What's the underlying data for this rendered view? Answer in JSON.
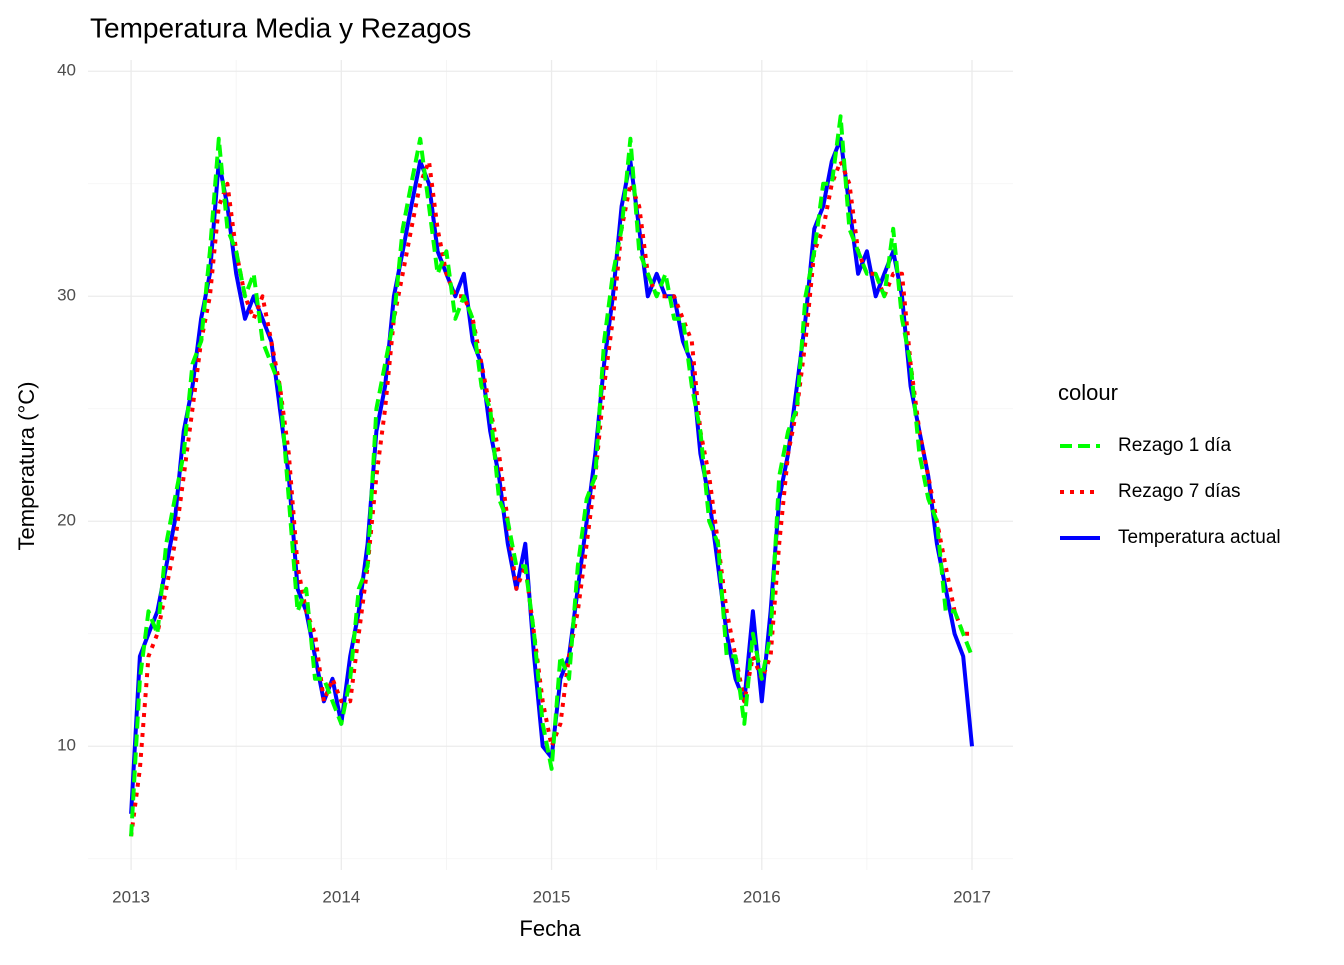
{
  "chart_data": {
    "type": "line",
    "title": "Temperatura Media y Rezagos",
    "x_label": "Fecha",
    "y_label": "Temperatura (°C)",
    "xlim": [
      2012.795,
      2017.195
    ],
    "xticks": [
      2013,
      2014,
      2015,
      2016,
      2017
    ],
    "ylim": [
      4.5,
      40.5
    ],
    "yticks": [
      10,
      20,
      30,
      40
    ],
    "grid": true,
    "minor_grid": true,
    "legend_title": "colour",
    "legend_position": "right",
    "x": [
      2013,
      2013.042,
      2013.083,
      2013.125,
      2013.167,
      2013.208,
      2013.25,
      2013.292,
      2013.333,
      2013.375,
      2013.417,
      2013.458,
      2013.5,
      2013.542,
      2013.583,
      2013.625,
      2013.667,
      2013.708,
      2013.75,
      2013.792,
      2013.833,
      2013.875,
      2013.917,
      2013.958,
      2014,
      2014.042,
      2014.083,
      2014.125,
      2014.167,
      2014.208,
      2014.25,
      2014.292,
      2014.333,
      2014.375,
      2014.417,
      2014.458,
      2014.5,
      2014.542,
      2014.583,
      2014.625,
      2014.667,
      2014.708,
      2014.75,
      2014.792,
      2014.833,
      2014.875,
      2014.917,
      2014.958,
      2015,
      2015.042,
      2015.083,
      2015.125,
      2015.167,
      2015.208,
      2015.25,
      2015.292,
      2015.333,
      2015.375,
      2015.417,
      2015.458,
      2015.5,
      2015.542,
      2015.583,
      2015.625,
      2015.667,
      2015.708,
      2015.75,
      2015.792,
      2015.833,
      2015.875,
      2015.917,
      2015.958,
      2016,
      2016.042,
      2016.083,
      2016.125,
      2016.167,
      2016.208,
      2016.25,
      2016.292,
      2016.333,
      2016.375,
      2016.417,
      2016.458,
      2016.5,
      2016.542,
      2016.583,
      2016.625,
      2016.667,
      2016.708,
      2016.75,
      2016.792,
      2016.833,
      2016.875,
      2016.917,
      2016.958,
      2017
    ],
    "series": [
      {
        "name": "Rezago 1 día",
        "color": "#00ff00",
        "dash": "dashed",
        "values": [
          6,
          13,
          16,
          15,
          19,
          21,
          23,
          27,
          28,
          32,
          37,
          33,
          32,
          30,
          31,
          28,
          27,
          26,
          21,
          16,
          17,
          13,
          13,
          12,
          11,
          13,
          17,
          18,
          25,
          27,
          29,
          33,
          35,
          37,
          34,
          31,
          32,
          29,
          30,
          29,
          26,
          25,
          21,
          20,
          18,
          18,
          15,
          11,
          9,
          14,
          13,
          18,
          21,
          22,
          28,
          31,
          33,
          37,
          32,
          31,
          30,
          31,
          29,
          29,
          26,
          24,
          20,
          19,
          14,
          14,
          11,
          15,
          13,
          15,
          22,
          24,
          25,
          30,
          32,
          35,
          35,
          38,
          33,
          32,
          31,
          31,
          30,
          33,
          29,
          27,
          23,
          21,
          20,
          16,
          16,
          15,
          14
        ]
      },
      {
        "name": "Rezago 7 días",
        "color": "#ff0000",
        "dash": "dotted",
        "values": [
          6,
          9,
          14,
          15,
          17,
          19,
          22,
          25,
          28,
          30,
          34,
          35,
          32,
          30,
          29,
          30,
          28,
          26,
          23,
          18,
          16,
          15,
          12,
          13,
          12,
          12,
          15,
          18,
          22,
          25,
          29,
          31,
          33,
          35,
          36,
          33,
          31,
          30,
          30,
          29,
          27,
          25,
          23,
          20,
          17,
          18,
          15,
          12,
          10,
          11,
          14,
          16,
          19,
          22,
          26,
          29,
          33,
          35,
          34,
          31,
          30,
          30,
          30,
          29,
          28,
          24,
          22,
          19,
          16,
          14,
          12,
          14,
          13,
          14,
          19,
          23,
          25,
          28,
          32,
          33,
          35,
          36,
          35,
          32,
          31,
          31,
          30,
          31,
          31,
          27,
          24,
          22,
          20,
          18,
          16,
          15,
          15
        ]
      },
      {
        "name": "Temperatura actual",
        "color": "#0000ff",
        "dash": "solid",
        "values": [
          7,
          14,
          15,
          16,
          18,
          20,
          24,
          26,
          29,
          31,
          36,
          34,
          31,
          29,
          30,
          29,
          28,
          25,
          22,
          17,
          16,
          14,
          12,
          13,
          11,
          14,
          16,
          19,
          24,
          26,
          30,
          32,
          34,
          36,
          35,
          32,
          31,
          30,
          31,
          28,
          27,
          24,
          22,
          19,
          17,
          19,
          14,
          10,
          9.5,
          13,
          14,
          17,
          20,
          23,
          27,
          30,
          34,
          36,
          33,
          30,
          31,
          30,
          30,
          28,
          27,
          23,
          21,
          18,
          15,
          13,
          12,
          16,
          12,
          16,
          21,
          23,
          26,
          29,
          33,
          34,
          36,
          37,
          34,
          31,
          32,
          30,
          31,
          32,
          30,
          26,
          24,
          22,
          19,
          17,
          15,
          14,
          10
        ]
      }
    ]
  }
}
